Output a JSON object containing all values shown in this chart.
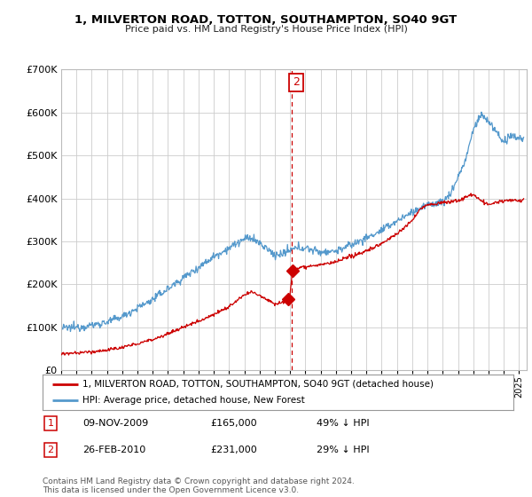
{
  "title": "1, MILVERTON ROAD, TOTTON, SOUTHAMPTON, SO40 9GT",
  "subtitle": "Price paid vs. HM Land Registry's House Price Index (HPI)",
  "ylim": [
    0,
    700000
  ],
  "xlim_start": 1995.0,
  "xlim_end": 2025.5,
  "legend_line1": "1, MILVERTON ROAD, TOTTON, SOUTHAMPTON, SO40 9GT (detached house)",
  "legend_line2": "HPI: Average price, detached house, New Forest",
  "transaction1_label": "1",
  "transaction1_date": "09-NOV-2009",
  "transaction1_price": "£165,000",
  "transaction1_pct": "49% ↓ HPI",
  "transaction1_x": 2009.86,
  "transaction1_y": 165000,
  "transaction2_label": "2",
  "transaction2_date": "26-FEB-2010",
  "transaction2_price": "£231,000",
  "transaction2_pct": "29% ↓ HPI",
  "transaction2_x": 2010.15,
  "transaction2_y": 231000,
  "vline_x": 2010.1,
  "red_line_color": "#cc0000",
  "blue_line_color": "#5599cc",
  "footer": "Contains HM Land Registry data © Crown copyright and database right 2024.\nThis data is licensed under the Open Government Licence v3.0.",
  "background_color": "#ffffff",
  "grid_color": "#cccccc"
}
